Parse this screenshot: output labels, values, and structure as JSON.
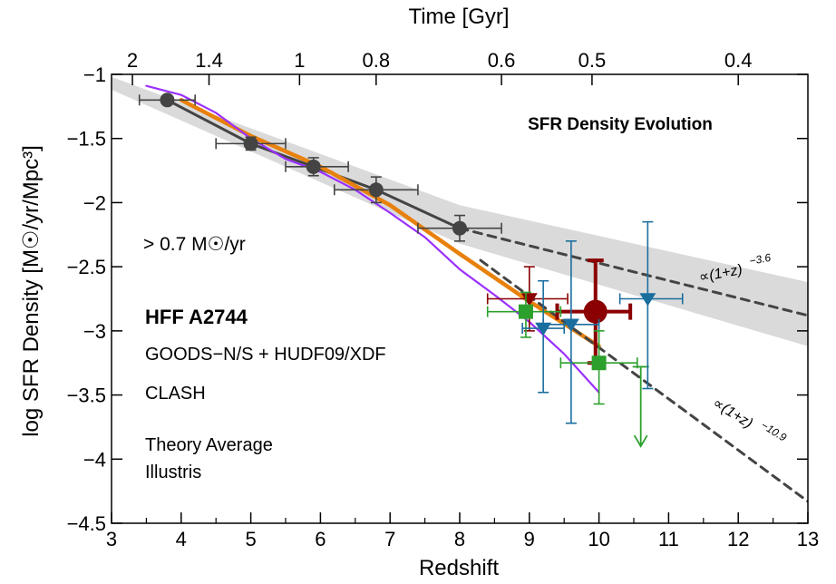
{
  "chart_data": {
    "type": "scatter",
    "title": "SFR Density Evolution",
    "xlabel": "Redshift",
    "ylabel": "log SFR Density [M☉/yr/Mpc³]",
    "top_axis_label": "Time [Gyr]",
    "xlim": [
      3,
      13
    ],
    "ylim": [
      -4.5,
      -1
    ],
    "x_ticks": [
      "3",
      "4",
      "5",
      "6",
      "7",
      "8",
      "9",
      "10",
      "11",
      "12",
      "13"
    ],
    "y_ticks": [
      "−1",
      "−1.5",
      "−2",
      "−2.5",
      "−3",
      "−3.5",
      "−4",
      "−4.5"
    ],
    "top_ticks": [
      {
        "label": "2",
        "z": 3.3
      },
      {
        "label": "1.4",
        "z": 4.4
      },
      {
        "label": "1",
        "z": 5.7
      },
      {
        "label": "0.8",
        "z": 6.8
      },
      {
        "label": "0.6",
        "z": 8.6
      },
      {
        "label": "0.5",
        "z": 9.9
      },
      {
        "label": "0.4",
        "z": 12.0
      }
    ],
    "threshold_label": "> 0.7 M☉/yr",
    "legend": [
      {
        "label": "HFF A2744",
        "color": "#8B0000"
      },
      {
        "label": "GOODS−N/S + HUDF09/XDF",
        "color": "#2ca02c"
      },
      {
        "label": "CLASH",
        "color": "#1a6e9e"
      },
      {
        "label": "Theory Average",
        "color": "#e8810c"
      },
      {
        "label": "Illustris",
        "color": "#9b30ff"
      }
    ],
    "annotations": [
      {
        "text": "∝(1+z)",
        "exponent": "−3.6"
      },
      {
        "text": "∝(1+z)",
        "exponent": "−10.9"
      }
    ],
    "series": [
      {
        "name": "Lower-z Compilation",
        "color": "#444444",
        "points": [
          {
            "x": 3.8,
            "y": -1.2,
            "xerr": [
              0.4,
              0.4
            ],
            "yerr": [
              0.03,
              0.03
            ]
          },
          {
            "x": 5.0,
            "y": -1.54,
            "xerr": [
              0.5,
              0.5
            ],
            "yerr": [
              0.05,
              0.05
            ]
          },
          {
            "x": 5.9,
            "y": -1.72,
            "xerr": [
              0.4,
              0.5
            ],
            "yerr": [
              0.07,
              0.07
            ]
          },
          {
            "x": 6.8,
            "y": -1.9,
            "xerr": [
              0.6,
              0.6
            ],
            "yerr": [
              0.1,
              0.1
            ]
          },
          {
            "x": 8.0,
            "y": -2.2,
            "xerr": [
              0.6,
              0.6
            ],
            "yerr": [
              0.1,
              0.1
            ]
          }
        ]
      },
      {
        "name": "HFF A2744",
        "color": "#8B0000",
        "points": [
          {
            "x": 9.95,
            "y": -2.85,
            "xerr": [
              0.55,
              0.5
            ],
            "yerr": [
              0.4,
              0.4
            ]
          },
          {
            "x": 9.0,
            "y": -2.75,
            "xerr": [
              0.6,
              0.55
            ],
            "yerr": [
              0.25,
              0.25
            ],
            "marker": "triangle"
          }
        ]
      },
      {
        "name": "GOODS−N/S + HUDF09/XDF",
        "color": "#2ca02c",
        "points": [
          {
            "x": 8.95,
            "y": -2.85,
            "xerr": [
              0.55,
              0.5
            ],
            "yerr": [
              0.15,
              0.2
            ]
          },
          {
            "x": 10.0,
            "y": -3.25,
            "xerr": [
              0.55,
              0.55
            ],
            "yerr": [
              0.25,
              0.32
            ]
          },
          {
            "x": 10.6,
            "y": -3.28,
            "upper_limit_to": -3.9,
            "marker": "arrow"
          }
        ]
      },
      {
        "name": "CLASH",
        "color": "#1a6e9e",
        "points": [
          {
            "x": 9.2,
            "y": -2.98,
            "xerr": [
              0.3,
              0.3
            ],
            "yerr": [
              0.37,
              0.5
            ],
            "marker": "triangle"
          },
          {
            "x": 9.6,
            "y": -2.95,
            "xerr": [
              0.4,
              0.4
            ],
            "yerr": [
              0.65,
              0.77
            ],
            "marker": "triangle"
          },
          {
            "x": 10.7,
            "y": -2.75,
            "xerr": [
              0.4,
              0.5
            ],
            "yerr": [
              0.6,
              0.7
            ],
            "marker": "triangle"
          }
        ]
      },
      {
        "name": "Theory Average",
        "color": "#e8810c",
        "x": [
          4.0,
          5.0,
          6.0,
          7.0,
          8.0,
          9.0,
          10.0
        ],
        "y": [
          -1.2,
          -1.48,
          -1.72,
          -2.02,
          -2.4,
          -2.77,
          -3.12
        ]
      },
      {
        "name": "Illustris",
        "color": "#9b30ff",
        "x": [
          3.5,
          4.0,
          4.5,
          5.0,
          5.5,
          6.0,
          6.5,
          7.0,
          7.5,
          8.0,
          8.5,
          9.0,
          9.5,
          10.0
        ],
        "y": [
          -1.09,
          -1.16,
          -1.3,
          -1.5,
          -1.66,
          -1.76,
          -1.9,
          -2.08,
          -2.27,
          -2.52,
          -2.72,
          -2.93,
          -3.18,
          -3.48
        ]
      },
      {
        "name": "Power law (1+z)^-3.6",
        "color": "#444444",
        "style": "dashed",
        "x": [
          8.0,
          13.0
        ],
        "y": [
          -2.2,
          -2.88
        ]
      },
      {
        "name": "Power law (1+z)^-10.9",
        "color": "#444444",
        "style": "dashed",
        "x": [
          8.3,
          13.0
        ],
        "y": [
          -2.45,
          -4.33
        ]
      },
      {
        "name": "Uncertainty Band",
        "color": "#d3d3d3",
        "style": "band",
        "x": [
          3.0,
          8.0,
          13.0
        ],
        "y_upper": [
          -1.02,
          -2.02,
          -2.62
        ],
        "y_lower": [
          -1.12,
          -2.32,
          -3.12
        ]
      }
    ]
  }
}
